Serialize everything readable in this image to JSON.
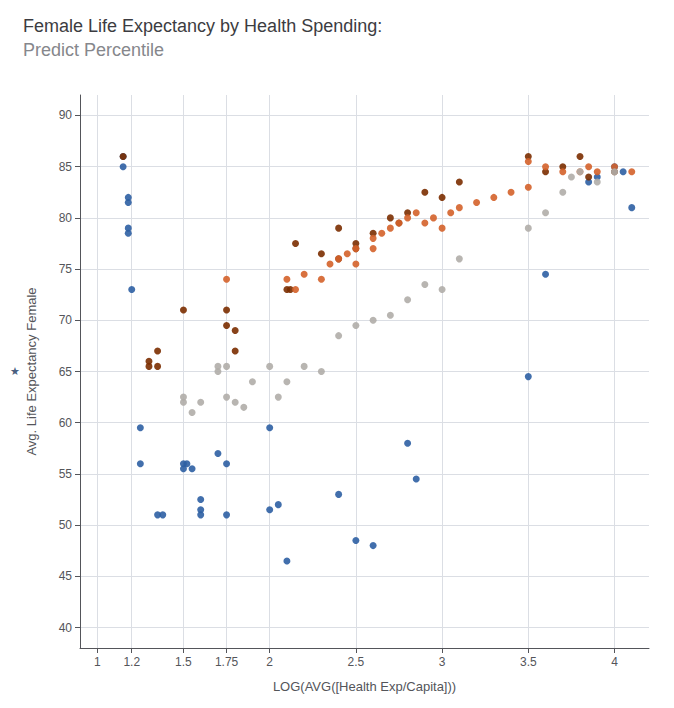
{
  "chart_data": {
    "type": "scatter",
    "title": "Female Life Expectancy by Health Spending:",
    "subtitle": "Predict Percentile",
    "xlabel": "LOG(AVG([Health Exp/Capita]))",
    "ylabel": "Avg. Life Expectancy Female",
    "annotations": [
      {
        "text": "★"
      }
    ],
    "xlim": [
      0.9,
      4.2
    ],
    "ylim": [
      38,
      92
    ],
    "xticks": [
      1,
      1.2,
      1.5,
      1.75,
      2,
      2.5,
      3,
      3.5,
      4
    ],
    "yticks": [
      40,
      45,
      50,
      55,
      60,
      65,
      70,
      75,
      80,
      85,
      90
    ],
    "grid": true,
    "series": [
      {
        "color": "#2E5FA3",
        "x": [
          1.15,
          1.15,
          1.18,
          1.18,
          1.18,
          1.18,
          1.2,
          1.25,
          1.25,
          1.35,
          1.38,
          1.5,
          1.52,
          1.5,
          1.55,
          1.6,
          1.6,
          1.6,
          1.7,
          1.75,
          1.75,
          2.0,
          2.0,
          2.05,
          2.1,
          2.4,
          2.5,
          2.6,
          2.8,
          2.85,
          3.5,
          3.6,
          3.85,
          3.9,
          4.0,
          4.05,
          4.1
        ],
        "values": [
          86.0,
          85.0,
          82.0,
          81.5,
          79.0,
          78.5,
          73.0,
          59.5,
          56.0,
          51.0,
          51.0,
          56.0,
          56.0,
          55.5,
          55.5,
          52.5,
          51.5,
          51.0,
          57.0,
          56.0,
          51.0,
          59.5,
          51.5,
          52.0,
          46.5,
          53.0,
          48.5,
          48.0,
          58.0,
          54.5,
          64.5,
          74.5,
          83.5,
          84.0,
          85.0,
          84.5,
          81.0
        ]
      },
      {
        "color": "#7B2D00",
        "x": [
          1.15,
          1.3,
          1.3,
          1.35,
          1.35,
          1.5,
          1.75,
          1.75,
          1.8,
          1.8,
          2.1,
          2.12,
          2.15,
          2.3,
          2.4,
          2.4,
          2.5,
          2.5,
          2.6,
          2.7,
          2.75,
          2.8,
          2.9,
          3.0,
          3.1,
          3.5,
          3.6,
          3.7,
          3.8,
          3.85,
          4.0
        ],
        "values": [
          86.0,
          66.0,
          65.5,
          65.5,
          67.0,
          71.0,
          71.0,
          69.5,
          69.0,
          67.0,
          73.0,
          73.0,
          77.5,
          76.5,
          76.0,
          79.0,
          77.5,
          77.0,
          78.5,
          80.0,
          79.5,
          80.5,
          82.5,
          82.0,
          83.5,
          86.0,
          84.5,
          85.0,
          86.0,
          84.0,
          84.5
        ]
      },
      {
        "color": "#D4622A",
        "x": [
          1.75,
          2.1,
          2.15,
          2.2,
          2.3,
          2.35,
          2.4,
          2.45,
          2.5,
          2.5,
          2.6,
          2.6,
          2.65,
          2.7,
          2.75,
          2.8,
          2.85,
          2.9,
          2.95,
          3.0,
          3.05,
          3.1,
          3.2,
          3.3,
          3.4,
          3.5,
          3.5,
          3.6,
          3.7,
          3.8,
          3.85,
          3.9,
          4.0,
          4.1
        ],
        "values": [
          74.0,
          74.0,
          73.0,
          74.5,
          74.0,
          75.5,
          76.0,
          76.5,
          77.0,
          75.5,
          77.0,
          78.0,
          78.5,
          79.0,
          79.5,
          80.0,
          80.5,
          79.5,
          80.0,
          79.0,
          80.5,
          81.0,
          81.5,
          82.0,
          82.5,
          83.0,
          85.5,
          85.0,
          84.5,
          84.5,
          85.0,
          84.5,
          85.0,
          84.5
        ]
      },
      {
        "color": "#B0ADA8",
        "x": [
          1.5,
          1.5,
          1.55,
          1.6,
          1.7,
          1.7,
          1.75,
          1.75,
          1.8,
          1.85,
          1.9,
          2.0,
          2.05,
          2.1,
          2.2,
          2.3,
          2.4,
          2.5,
          2.6,
          2.7,
          2.8,
          2.9,
          3.0,
          3.1,
          3.5,
          3.6,
          3.7,
          3.75,
          3.8,
          3.9,
          4.0
        ],
        "values": [
          62.0,
          62.5,
          61.0,
          62.0,
          65.5,
          65.0,
          65.5,
          62.5,
          62.0,
          61.5,
          64.0,
          65.5,
          62.5,
          64.0,
          65.5,
          65.0,
          68.5,
          69.5,
          70.0,
          70.5,
          72.0,
          73.5,
          73.0,
          76.0,
          79.0,
          80.5,
          82.5,
          84.0,
          84.5,
          83.5,
          84.5
        ]
      }
    ]
  }
}
